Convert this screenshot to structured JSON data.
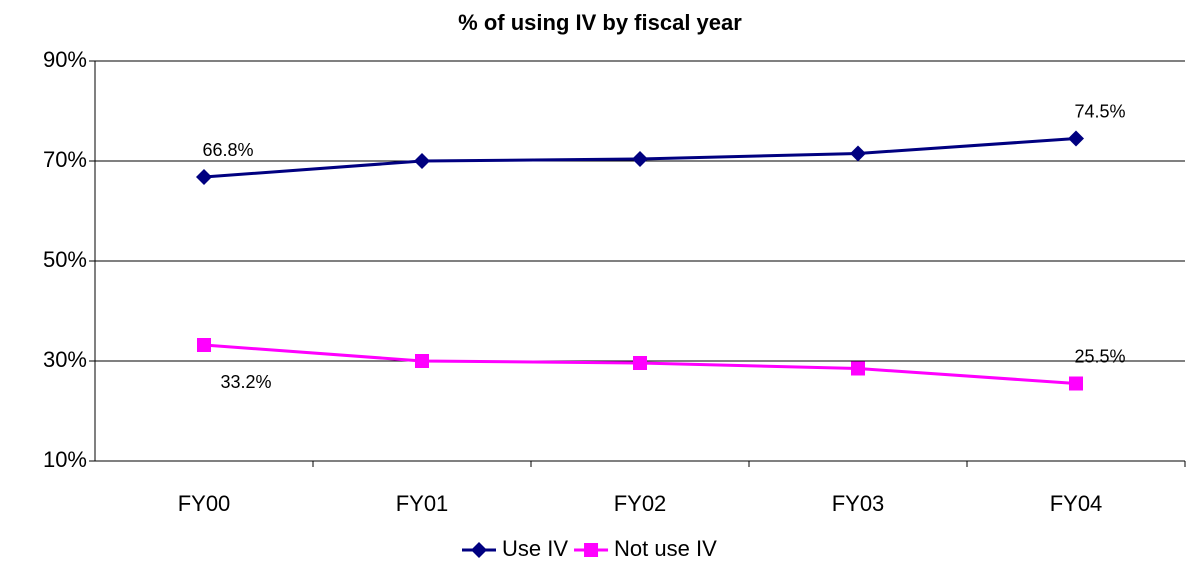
{
  "chart_data": {
    "type": "line",
    "title": "% of using IV by fiscal year",
    "categories": [
      "FY00",
      "FY01",
      "FY02",
      "FY03",
      "FY04"
    ],
    "series": [
      {
        "name": "Use IV",
        "color": "#000080",
        "marker": "diamond",
        "values": [
          66.8,
          70.0,
          70.4,
          71.5,
          74.5
        ],
        "value_labels": [
          "66.8%",
          null,
          null,
          null,
          "74.5%"
        ]
      },
      {
        "name": "Not use IV",
        "color": "#ff00ff",
        "marker": "square",
        "values": [
          33.2,
          30.0,
          29.6,
          28.5,
          25.5
        ],
        "value_labels": [
          "33.2%",
          null,
          null,
          null,
          "25.5%"
        ]
      }
    ],
    "ylim": [
      10,
      90
    ],
    "yticks": [
      {
        "value": 10,
        "label": "10%"
      },
      {
        "value": 30,
        "label": "30%"
      },
      {
        "value": 50,
        "label": "50%"
      },
      {
        "value": 70,
        "label": "70%"
      },
      {
        "value": 90,
        "label": "90%"
      }
    ],
    "grid": true,
    "legend": "bottom"
  }
}
